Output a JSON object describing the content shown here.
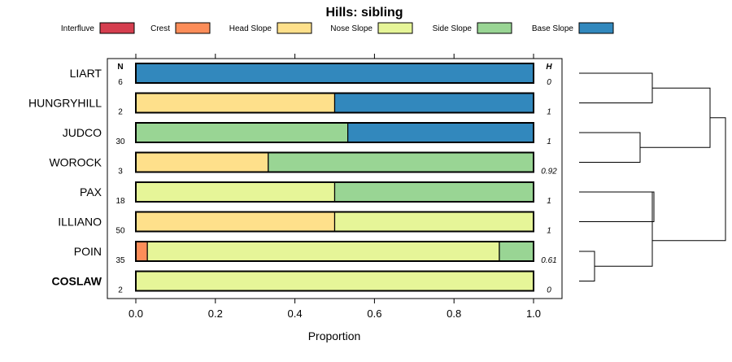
{
  "chart_data": {
    "type": "bar",
    "stacked": true,
    "orientation": "horizontal",
    "title": "Hills: sibling",
    "xlabel": "Proportion",
    "ylabel": "",
    "xlim": [
      0,
      1
    ],
    "xticks": [
      "0.0",
      "0.2",
      "0.4",
      "0.6",
      "0.8",
      "1.0"
    ],
    "legend_position": "top",
    "n_header": "N",
    "h_header": "H",
    "legend": [
      {
        "name": "Interfluve",
        "color": "#D53E4F"
      },
      {
        "name": "Crest",
        "color": "#FC8D59"
      },
      {
        "name": "Head Slope",
        "color": "#FEE08B"
      },
      {
        "name": "Nose Slope",
        "color": "#E6F598"
      },
      {
        "name": "Side Slope",
        "color": "#99D594"
      },
      {
        "name": "Base Slope",
        "color": "#3288BD"
      }
    ],
    "rows": [
      {
        "label": "LIART",
        "n": "6",
        "h": "0",
        "bold": false,
        "values": [
          0,
          0,
          0,
          0,
          0,
          1
        ]
      },
      {
        "label": "HUNGRYHILL",
        "n": "2",
        "h": "1",
        "bold": false,
        "values": [
          0,
          0,
          0.5,
          0,
          0,
          0.5
        ]
      },
      {
        "label": "JUDCO",
        "n": "30",
        "h": "1",
        "bold": false,
        "values": [
          0,
          0,
          0,
          0,
          0.533,
          0.467
        ]
      },
      {
        "label": "WOROCK",
        "n": "3",
        "h": "0.92",
        "bold": false,
        "values": [
          0,
          0,
          0.333,
          0,
          0.667,
          0
        ]
      },
      {
        "label": "PAX",
        "n": "18",
        "h": "1",
        "bold": false,
        "values": [
          0,
          0,
          0,
          0.5,
          0.5,
          0
        ]
      },
      {
        "label": "ILLIANO",
        "n": "50",
        "h": "1",
        "bold": false,
        "values": [
          0,
          0,
          0.5,
          0.5,
          0,
          0
        ]
      },
      {
        "label": "POIN",
        "n": "35",
        "h": "0.61",
        "bold": false,
        "values": [
          0,
          0.029,
          0,
          0.885,
          0.086,
          0
        ]
      },
      {
        "label": "COSLAW",
        "n": "2",
        "h": "0",
        "bold": true,
        "values": [
          0,
          0,
          0,
          1,
          0,
          0
        ]
      }
    ],
    "dendrogram": {
      "merges": [
        {
          "left": "LIART",
          "right": "HUNGRYHILL",
          "height": 0.45
        },
        {
          "left": "JUDCO",
          "right": "WOROCK",
          "height": 0.4
        },
        {
          "left": "POIN",
          "right": "COSLAW",
          "height": 0.1
        },
        {
          "left": "PAX",
          "right": "ILLIANO",
          "height": 0.5
        },
        {
          "left": "PAX|ILLIANO",
          "right": "POIN|COSLAW",
          "height": 0.47
        },
        {
          "left": "PAX|ILLIANO|POIN|COSLAW",
          "right": "-",
          "height": 0.0
        },
        {
          "left": "LIART|HUNGRYHILL",
          "right": "JUDCO|WOROCK",
          "height": 0.85
        },
        {
          "left": "LIART|HUNGRYHILL|JUDCO|WOROCK",
          "right": "PAX|ILLIANO|POIN|COSLAW",
          "height": 1.0
        }
      ]
    }
  }
}
